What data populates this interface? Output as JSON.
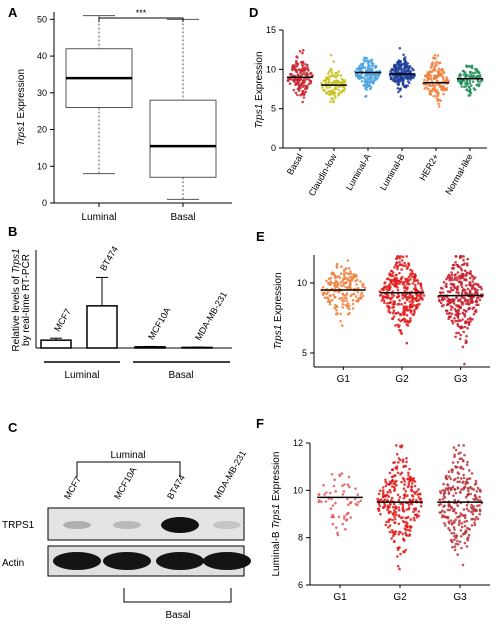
{
  "chart_data": [
    {
      "panel": "A",
      "type": "box",
      "ylabel_pre": "",
      "ylabel_italic": "Trps1",
      "ylabel_post": " Expression",
      "ylim": [
        0,
        52
      ],
      "yticks": [
        0,
        10,
        20,
        30,
        40,
        50
      ],
      "categories": [
        "Luminal",
        "Basal"
      ],
      "boxes": [
        {
          "min": 8,
          "q1": 26,
          "median": 34,
          "q3": 42,
          "max": 51
        },
        {
          "min": 1,
          "q1": 7,
          "median": 15.5,
          "q3": 28,
          "max": 50
        }
      ],
      "significance": "***"
    },
    {
      "panel": "B",
      "type": "bar",
      "ylabel_line1_pre": "Relative levels of ",
      "ylabel_line1_italic": "Trps1",
      "ylabel_line2": "by real-time RT-PCR",
      "ylim": [
        0,
        100
      ],
      "categories": [
        "MCF7",
        "BT474",
        "MCF10A",
        "MDA-MB-231"
      ],
      "values": [
        8,
        43,
        1.2,
        0.6
      ],
      "errors": [
        2,
        29,
        0.4,
        0.3
      ],
      "groups": [
        {
          "label": "Luminal"
        },
        {
          "label": "Basal"
        }
      ]
    },
    {
      "panel": "D",
      "type": "scatter",
      "ylabel_italic": "Trps1",
      "ylabel_post": " Expression",
      "ylim": [
        0,
        15
      ],
      "yticks": [
        0,
        5,
        10,
        15
      ],
      "categories": [
        "Basal",
        "Claudin-low",
        "Luminal-A",
        "Luminal-B",
        "HER2+",
        "Normal-like"
      ],
      "means": [
        9.0,
        8.0,
        9.6,
        9.4,
        8.3,
        8.8
      ],
      "spreads": [
        1.3,
        1.0,
        0.9,
        1.0,
        1.3,
        1.0
      ],
      "colors": [
        "#c8262e",
        "#c9c220",
        "#4aa3df",
        "#1f3f9a",
        "#f07f3c",
        "#1f8c55"
      ]
    },
    {
      "panel": "E",
      "type": "scatter",
      "ylabel_italic": "Trps1",
      "ylabel_post": " Expression",
      "ylim": [
        4,
        12
      ],
      "yticks": [
        5,
        10
      ],
      "categories": [
        "G1",
        "G2",
        "G3"
      ],
      "means": [
        9.5,
        9.3,
        9.1
      ],
      "spreads": [
        0.9,
        1.2,
        1.3
      ],
      "colors": [
        "#f07f3c",
        "#e01a1a",
        "#c71d2a"
      ]
    },
    {
      "panel": "F",
      "type": "scatter",
      "ylabel_pre": "Luminal-B ",
      "ylabel_italic": "Trps1",
      "ylabel_post": " Expression",
      "ylim": [
        6,
        12
      ],
      "yticks": [
        6,
        8,
        10,
        12
      ],
      "categories": [
        "G1",
        "G2",
        "G3"
      ],
      "means": [
        9.7,
        9.5,
        9.5
      ],
      "spreads": [
        0.6,
        0.9,
        1.0
      ],
      "colors": [
        "#e8585a",
        "#e01a1a",
        "#b8353b"
      ]
    }
  ],
  "western_blot": {
    "panel": "C",
    "lanes": [
      "MCF7",
      "MCF10A",
      "BT474",
      "MDA-MB-231"
    ],
    "rows": [
      "TRPS1",
      "Actin"
    ],
    "trps1_intensity": [
      0.25,
      0.2,
      1.0,
      0.15
    ],
    "actin_intensity": [
      1.0,
      1.0,
      1.0,
      1.0
    ],
    "luminal_label": "Luminal",
    "basal_label": "Basal"
  }
}
